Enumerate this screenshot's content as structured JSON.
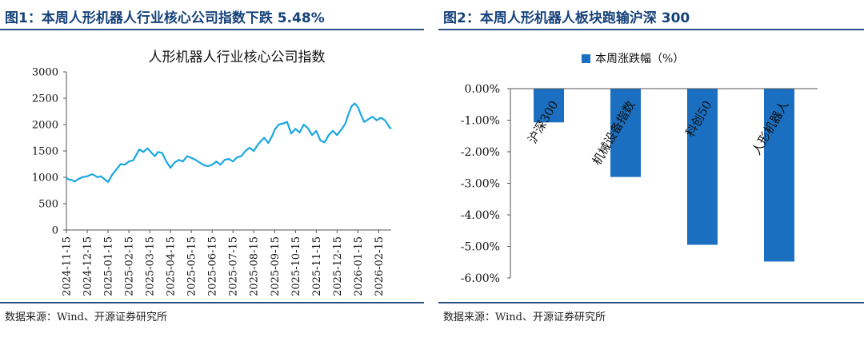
{
  "fig1": {
    "title": "图1：本周人形机器人行业核心公司指数下跌 5.48%",
    "source": "数据来源：Wind、开源证券研究所"
  },
  "fig2": {
    "title": "图2：本周人形机器人板块跑输沪深 300",
    "source": "数据来源：Wind、开源证券研究所"
  },
  "colors": {
    "title": "#16427a",
    "rule": "#2a4f84",
    "line": "#19a7e0",
    "bar": "#1a6fc0",
    "axis": "#555555"
  },
  "chart_data": [
    {
      "type": "line",
      "title": "人形机器人行业核心公司指数",
      "xlabel": "",
      "ylabel": "",
      "ylim": [
        0,
        3000
      ],
      "yticks": [
        "0",
        "500",
        "1000",
        "1500",
        "2000",
        "2500",
        "3000"
      ],
      "xticks": [
        "2024-11-15",
        "2024-12-15",
        "2025-01-15",
        "2025-02-15",
        "2025-03-15",
        "2025-04-15",
        "2025-05-15",
        "2025-06-15",
        "2025-07-15",
        "2025-08-15",
        "2025-09-15",
        "2025-10-15",
        "2025-11-15",
        "2025-12-15",
        "2026-01-15",
        "2026-02-15"
      ],
      "grid": false,
      "legend": "none",
      "x": [
        0,
        0.1,
        0.25,
        0.4,
        0.55,
        0.75,
        1,
        1.25,
        1.5,
        1.65,
        1.85,
        2,
        2.2,
        2.4,
        2.6,
        2.8,
        3,
        3.2,
        3.35,
        3.5,
        3.7,
        3.9,
        4.1,
        4.25,
        4.4,
        4.6,
        4.8,
        5,
        5.2,
        5.4,
        5.6,
        5.8,
        6,
        6.2,
        6.4,
        6.6,
        6.8,
        7,
        7.2,
        7.4,
        7.6,
        7.8,
        8,
        8.2,
        8.4,
        8.6,
        8.8,
        9,
        9.2,
        9.35,
        9.5,
        9.7,
        9.9,
        10,
        10.2,
        10.4,
        10.6,
        10.8,
        11,
        11.2,
        11.4,
        11.6,
        11.8,
        12,
        12.2,
        12.4,
        12.6,
        12.8,
        13,
        13.2,
        13.4,
        13.55,
        13.7,
        13.85,
        14,
        14.15,
        14.3,
        14.5,
        14.7,
        14.9,
        15.1,
        15.3,
        15.5,
        15.6
      ],
      "y": [
        990,
        960,
        950,
        920,
        960,
        1000,
        1020,
        1060,
        1000,
        1020,
        960,
        910,
        1050,
        1150,
        1250,
        1240,
        1300,
        1320,
        1420,
        1530,
        1480,
        1550,
        1460,
        1400,
        1480,
        1460,
        1300,
        1180,
        1280,
        1330,
        1300,
        1400,
        1370,
        1330,
        1280,
        1230,
        1210,
        1240,
        1300,
        1240,
        1330,
        1350,
        1300,
        1380,
        1400,
        1500,
        1560,
        1500,
        1620,
        1690,
        1750,
        1650,
        1800,
        1900,
        2000,
        2020,
        2050,
        1830,
        1920,
        1850,
        2000,
        1930,
        1800,
        1880,
        1700,
        1660,
        1800,
        1880,
        1800,
        1900,
        2020,
        2200,
        2350,
        2400,
        2330,
        2180,
        2050,
        2100,
        2150,
        2080,
        2130,
        2080,
        1960,
        1920
      ]
    },
    {
      "type": "bar",
      "title": "",
      "legend_label": "本周涨跌幅（%）",
      "categories": [
        "沪深300",
        "机械设备指数",
        "科创50",
        "人形机器人"
      ],
      "values": [
        -1.07,
        -2.8,
        -4.95,
        -5.48
      ],
      "ylim": [
        -6,
        0
      ],
      "yticks": [
        "0.00%",
        "-1.00%",
        "-2.00%",
        "-3.00%",
        "-4.00%",
        "-5.00%",
        "-6.00%"
      ],
      "grid": false,
      "legend": "top"
    }
  ]
}
